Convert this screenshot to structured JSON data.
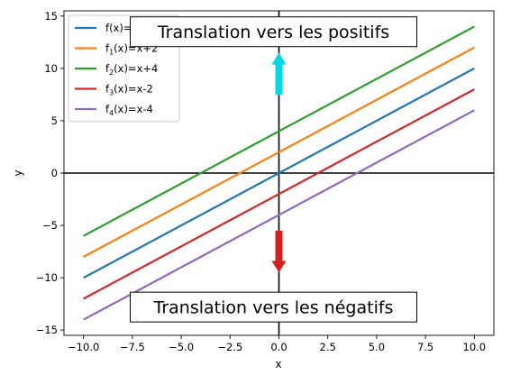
{
  "chart_data": {
    "type": "line",
    "xlabel": "x",
    "ylabel": "y",
    "xlim": [
      -11,
      11
    ],
    "ylim": [
      -15.5,
      15.5
    ],
    "grid": false,
    "legend_position": "top-left",
    "x_ticks": [
      -10,
      -7.5,
      -5,
      -2.5,
      0,
      2.5,
      5,
      7.5,
      10
    ],
    "x_tick_labels": [
      "−10.0",
      "−7.5",
      "−5.0",
      "−2.5",
      "0.0",
      "2.5",
      "5.0",
      "7.5",
      "10.0"
    ],
    "y_ticks": [
      -15,
      -10,
      -5,
      0,
      5,
      10,
      15
    ],
    "y_tick_labels": [
      "−15",
      "−10",
      "−5",
      "0",
      "5",
      "10",
      "15"
    ],
    "series": [
      {
        "name": "f(x)=x",
        "color": "#1f77b4",
        "x": [
          -10,
          10
        ],
        "y": [
          -10,
          10
        ]
      },
      {
        "name": "f1(x)=x+2",
        "color": "#ff7f0e",
        "x": [
          -10,
          10
        ],
        "y": [
          -8,
          12
        ]
      },
      {
        "name": "f2(x)=x+4",
        "color": "#2ca02c",
        "x": [
          -10,
          10
        ],
        "y": [
          -6,
          14
        ]
      },
      {
        "name": "f3(x)=x-2",
        "color": "#d62728",
        "x": [
          -10,
          10
        ],
        "y": [
          -12,
          8
        ]
      },
      {
        "name": "f4(x)=x-4",
        "color": "#9467bd",
        "x": [
          -10,
          10
        ],
        "y": [
          -14,
          6
        ]
      }
    ],
    "legend": [
      {
        "prefix": "f",
        "sub": "",
        "rest": "(x)=x",
        "color": "#1f77b4"
      },
      {
        "prefix": "f",
        "sub": "1",
        "rest": "(x)=x+2",
        "color": "#ff7f0e"
      },
      {
        "prefix": "f",
        "sub": "2",
        "rest": "(x)=x+4",
        "color": "#2ca02c"
      },
      {
        "prefix": "f",
        "sub": "3",
        "rest": "(x)=x-2",
        "color": "#d62728"
      },
      {
        "prefix": "f",
        "sub": "4",
        "rest": "(x)=x-4",
        "color": "#9467bd"
      }
    ],
    "annotations": {
      "top": {
        "text": "Translation vers les positifs",
        "x": 0,
        "y": 13.5
      },
      "bottom": {
        "text": "Translation vers les négatifs",
        "x": 0,
        "y": -12.8
      }
    },
    "arrows": [
      {
        "name": "up",
        "color": "#00d8e8",
        "x": 0,
        "y_from": 7.5,
        "y_to": 11.5
      },
      {
        "name": "down",
        "color": "#d62020",
        "x": 0,
        "y_from": -5.5,
        "y_to": -9.5
      }
    ]
  }
}
